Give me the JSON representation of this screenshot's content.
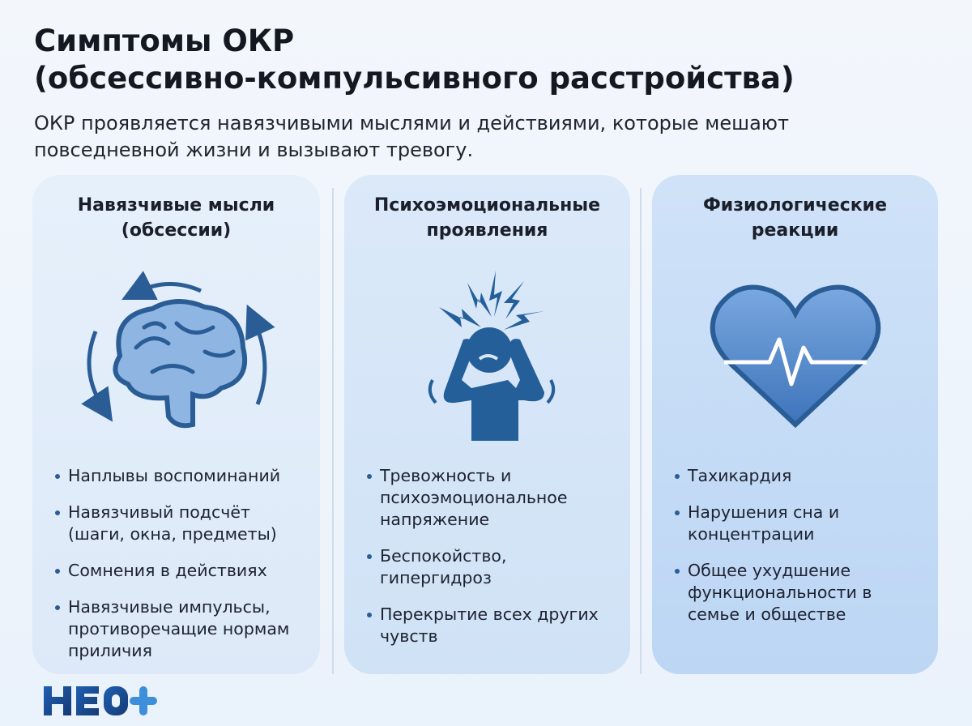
{
  "header": {
    "title_line1": "Симптомы ОКР",
    "title_line2": "(обсессивно-компульсивного расстройства)",
    "subtitle": "ОКР проявляется навязчивыми мыслями и действиями, которые мешают повседневной жизни и вызывают тревогу."
  },
  "columns": [
    {
      "title": "Навязчивые мысли (обсессии)",
      "icon": "brain-cycle-icon",
      "items": [
        "Наплывы воспоминаний",
        "Навязчивый подсчёт (шаги, окна, предметы)",
        "Сомнения в действиях",
        "Навязчивые импульсы, противоречащие нормам приличия"
      ]
    },
    {
      "title": "Психоэмоциональные проявления",
      "icon": "stressed-person-icon",
      "items": [
        "Тревожность и психоэмоциональное напряжение",
        "Беспокойство, гипергидроз",
        "Перекрытие всех других чувств"
      ]
    },
    {
      "title": "Физиологические реакции",
      "icon": "heart-pulse-icon",
      "items": [
        "Тахикардия",
        "Нарушения сна и концентрации",
        "Общее ухудшение функциональности в семье и обществе"
      ]
    }
  ],
  "logo": {
    "text": "НЕО+"
  },
  "colors": {
    "accent": "#2a5d96",
    "icon_blue": "#2f6aad",
    "card_bg": "#dbe9f9"
  }
}
